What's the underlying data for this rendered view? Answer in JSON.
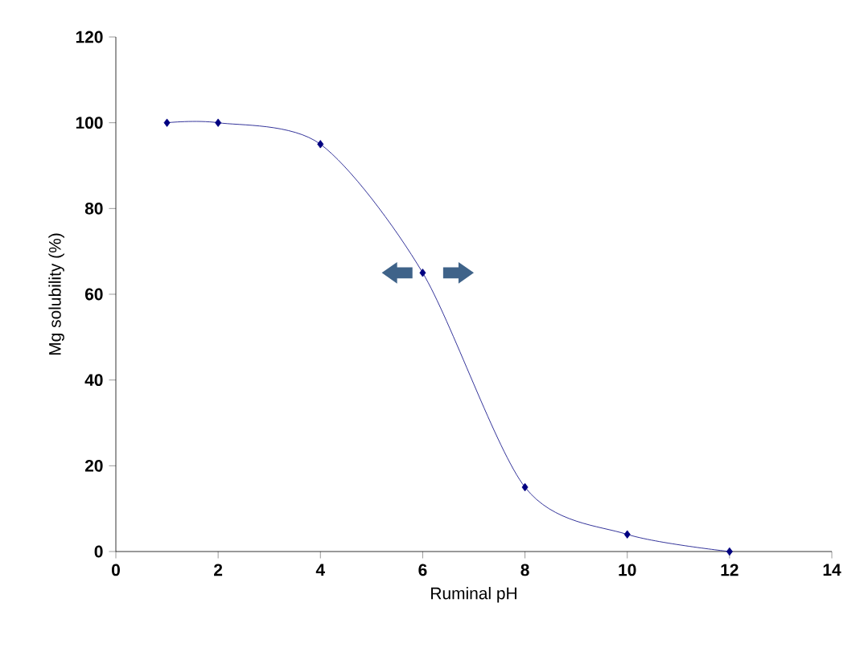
{
  "chart_data": {
    "type": "line",
    "xlabel": "Ruminal pH",
    "ylabel": "Mg solubility (%)",
    "x": [
      1,
      2,
      4,
      6,
      8,
      10,
      12
    ],
    "series": [
      {
        "color": "#000080",
        "values": [
          100,
          100,
          95,
          65,
          15,
          4,
          0
        ]
      }
    ],
    "xlim": [
      0,
      14
    ],
    "xticks": [
      0,
      2,
      4,
      6,
      8,
      10,
      12,
      14
    ],
    "ylim": [
      0,
      120
    ],
    "yticks": [
      0,
      20,
      40,
      60,
      80,
      100,
      120
    ],
    "grid": false,
    "marker": "diamond",
    "line_style": "solid"
  }
}
